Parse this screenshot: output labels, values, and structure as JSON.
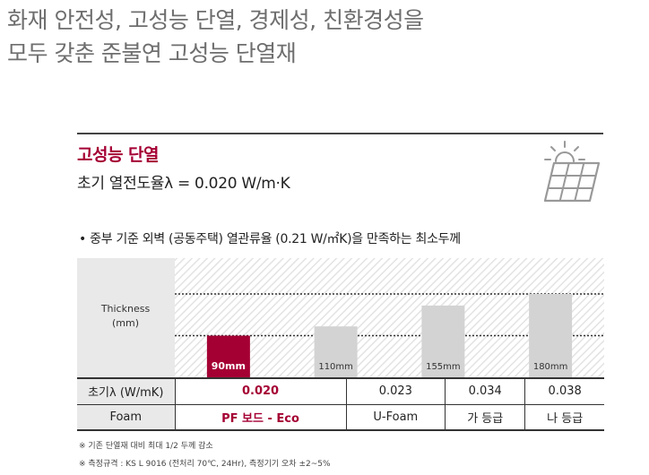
{
  "headline": {
    "line1": "화재 안전성, 고성능 단열, 경제성, 친환경성을",
    "line2": "모두 갖춘 준불연 고성능 단열재"
  },
  "section": {
    "title": "고성능 단열",
    "subtitle": "초기 열전도율λ = 0.020 W/m·K"
  },
  "icons": {
    "feature": "solar-panel-icon"
  },
  "note": "• 중부 기준 외벽 (공동주택) 열관류율 (0.21 W/㎡K)을 만족하는 최소두께",
  "chart_data": {
    "type": "bar",
    "ylabel": "Thickness\n(mm)",
    "ylabel_lines": [
      "Thickness",
      "(mm)"
    ],
    "categories": [
      "PF 보드 - Eco",
      "U-Foam",
      "가 등급",
      "나 등급"
    ],
    "values": [
      90,
      110,
      155,
      180
    ],
    "value_labels": [
      "90mm",
      "110mm",
      "155mm",
      "180mm"
    ],
    "ylim": [
      0,
      200
    ],
    "reference_lines": [
      90,
      180
    ],
    "grid": false,
    "highlight_index": 0,
    "colors": {
      "highlight": "#a50034",
      "bar": "#d3d3d3",
      "label_bg": "#e9e9e9",
      "hatch": "#e6e6e6"
    }
  },
  "table": {
    "rows": [
      {
        "header": "초기λ (W/mK)",
        "cells": [
          "0.020",
          "0.023",
          "0.034",
          "0.038"
        ]
      },
      {
        "header": "Foam",
        "cells": [
          "PF 보드 - Eco",
          "U-Foam",
          "가 등급",
          "나 등급"
        ]
      }
    ]
  },
  "footnotes": [
    "※ 기존 단열재 대비 최대 1/2 두께 감소",
    "※ 측정규격 : KS L 9016 (전처리 70℃, 24Hr), 측정기기 오차 ±2~5%"
  ]
}
